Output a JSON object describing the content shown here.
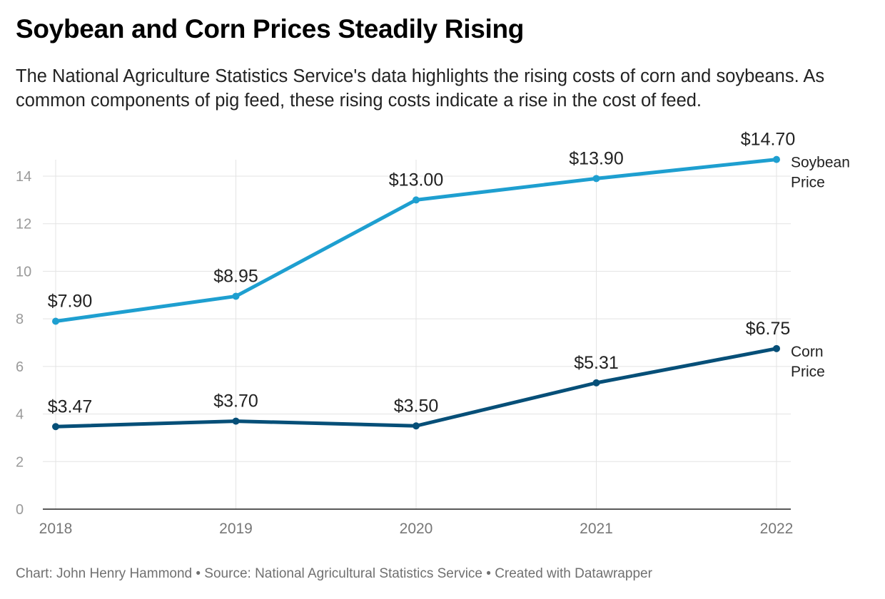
{
  "title": "Soybean and Corn Prices Steadily Rising",
  "subtitle": "The National Agriculture Statistics Service's data highlights the rising costs of corn and soybeans. As common components of pig feed, these rising costs indicate a rise in the cost of feed.",
  "footer": "Chart: John Henry Hammond • Source: National Agricultural Statistics Service  • Created with Datawrapper",
  "chart_data": {
    "type": "line",
    "x": [
      "2018",
      "2019",
      "2020",
      "2021",
      "2022"
    ],
    "y_ticks": [
      0,
      2,
      4,
      6,
      8,
      10,
      12,
      14
    ],
    "ylim": [
      0,
      14
    ],
    "grid": true,
    "series": [
      {
        "name": "Soybean Price",
        "name_lines": [
          "Soybean",
          "Price"
        ],
        "color": "#1e9fd0",
        "values": [
          7.9,
          8.95,
          13.0,
          13.9,
          14.7
        ],
        "labels": [
          "$7.90",
          "$8.95",
          "$13.00",
          "$13.90",
          "$14.70"
        ]
      },
      {
        "name": "Corn Price",
        "name_lines": [
          "Corn",
          "Price"
        ],
        "color": "#064f78",
        "values": [
          3.47,
          3.7,
          3.5,
          5.31,
          6.75
        ],
        "labels": [
          "$3.47",
          "$3.70",
          "$3.50",
          "$5.31",
          "$6.75"
        ]
      }
    ]
  }
}
